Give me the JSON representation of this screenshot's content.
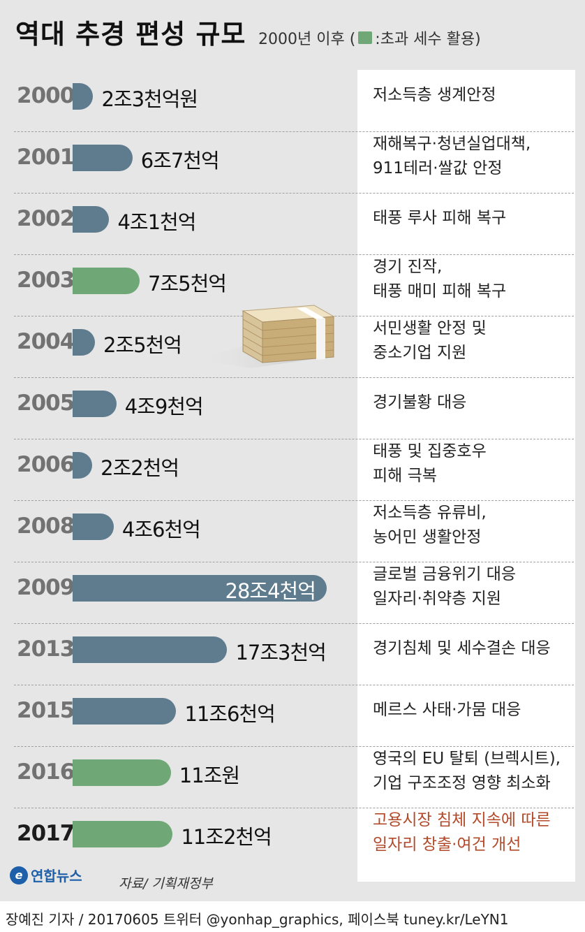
{
  "header": {
    "title": "역대 추경 편성 규모",
    "subtitle_prefix": "2000년 이후 (",
    "subtitle_suffix": ":초과 세수 활용)"
  },
  "colors": {
    "regular": "#5f7b8e",
    "excess_tax": "#6fa876",
    "highlight_text": "#b24a2a"
  },
  "chart_data": {
    "type": "bar",
    "orientation": "horizontal",
    "title": "역대 추경 편성 규모",
    "unit": "조원",
    "categories": [
      "2000",
      "2001",
      "2002",
      "2003",
      "2004",
      "2005",
      "2006",
      "2008",
      "2009",
      "2013",
      "2015",
      "2016",
      "2017"
    ],
    "values": [
      2.3,
      6.7,
      4.1,
      7.5,
      2.5,
      4.9,
      2.2,
      4.6,
      28.4,
      17.3,
      11.6,
      11.0,
      11.2
    ],
    "value_labels": [
      "2조3천억원",
      "6조7천억",
      "4조1천억",
      "7조5천억",
      "2조5천억",
      "4조9천억",
      "2조2천억",
      "4조6천억",
      "28조4천억",
      "17조3천억",
      "11조6천억",
      "11조원",
      "11조2천억"
    ],
    "excess_tax_used": [
      false,
      false,
      false,
      true,
      false,
      false,
      false,
      false,
      false,
      false,
      false,
      true,
      true
    ],
    "legend": ":초과 세수 활용"
  },
  "rows": [
    {
      "desc": [
        "저소득층 생계안정"
      ]
    },
    {
      "desc": [
        "재해복구·청년실업대책,",
        "911테러·쌀값 안정"
      ]
    },
    {
      "desc": [
        "태풍 루사 피해 복구"
      ]
    },
    {
      "desc": [
        "경기 진작,",
        "태풍 매미 피해 복구"
      ]
    },
    {
      "desc": [
        "서민생활 안정 및",
        "중소기업 지원"
      ]
    },
    {
      "desc": [
        "경기불황 대응"
      ]
    },
    {
      "desc": [
        "태풍 및 집중호우",
        "피해 극복"
      ]
    },
    {
      "desc": [
        "저소득층 유류비,",
        "농어민 생활안정"
      ]
    },
    {
      "desc": [
        "글로벌 금융위기 대응",
        "일자리·취약층 지원"
      ]
    },
    {
      "desc": [
        "경기침체 및 세수결손 대응"
      ]
    },
    {
      "desc": [
        "메르스 사태·가뭄 대응"
      ]
    },
    {
      "desc": [
        "영국의 EU 탈퇴 (브렉시트),",
        "기업 구조조정 영향 최소화"
      ]
    },
    {
      "desc": [
        "고용시장 침체 지속에 따른",
        "일자리 창출·여건 개선"
      ]
    }
  ],
  "footer": {
    "logo_text": "연합뉴스",
    "source": "자료/ 기획재정부",
    "credit": "장예진 기자 / 20170605 트위터 @yonhap_graphics, 페이스북 tuney.kr/LeYN1"
  }
}
